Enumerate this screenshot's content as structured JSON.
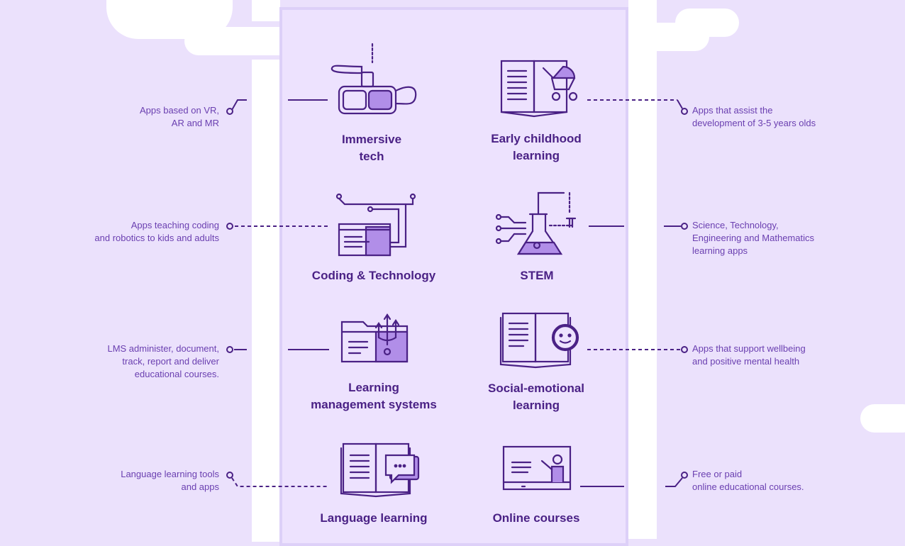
{
  "categories": [
    {
      "title": "Immersive\ntech",
      "description": "Apps based on VR,\nAR and MR"
    },
    {
      "title": "Early childhood\nlearning",
      "description": "Apps that assist the\ndevelopment of 3-5 years olds"
    },
    {
      "title": "Coding & Technology",
      "description": "Apps teaching coding\nand robotics to kids and adults"
    },
    {
      "title": "STEM",
      "description": "Science, Technology,\nEngineering and Mathematics\nlearning apps"
    },
    {
      "title": "Learning\nmanagement systems",
      "description": "LMS administer, document,\ntrack, report and deliver\neducational courses."
    },
    {
      "title": "Social-emotional\nlearning",
      "description": "Apps that support wellbeing\nand positive mental health"
    },
    {
      "title": "Language learning",
      "description": "Language learning tools\nand apps"
    },
    {
      "title": "Online courses",
      "description": "Free or paid\nonline educational courses."
    }
  ],
  "colors": {
    "background": "#ebe1fc",
    "ink": "#4a2185",
    "accent": "#b18ee8",
    "panel": "#ede2fe"
  },
  "icons": [
    "vr-headset-icon",
    "book-stroller-icon",
    "code-window-icon",
    "flask-icon",
    "lms-folder-icon",
    "smiley-book-icon",
    "book-chat-icon",
    "presentation-icon"
  ]
}
